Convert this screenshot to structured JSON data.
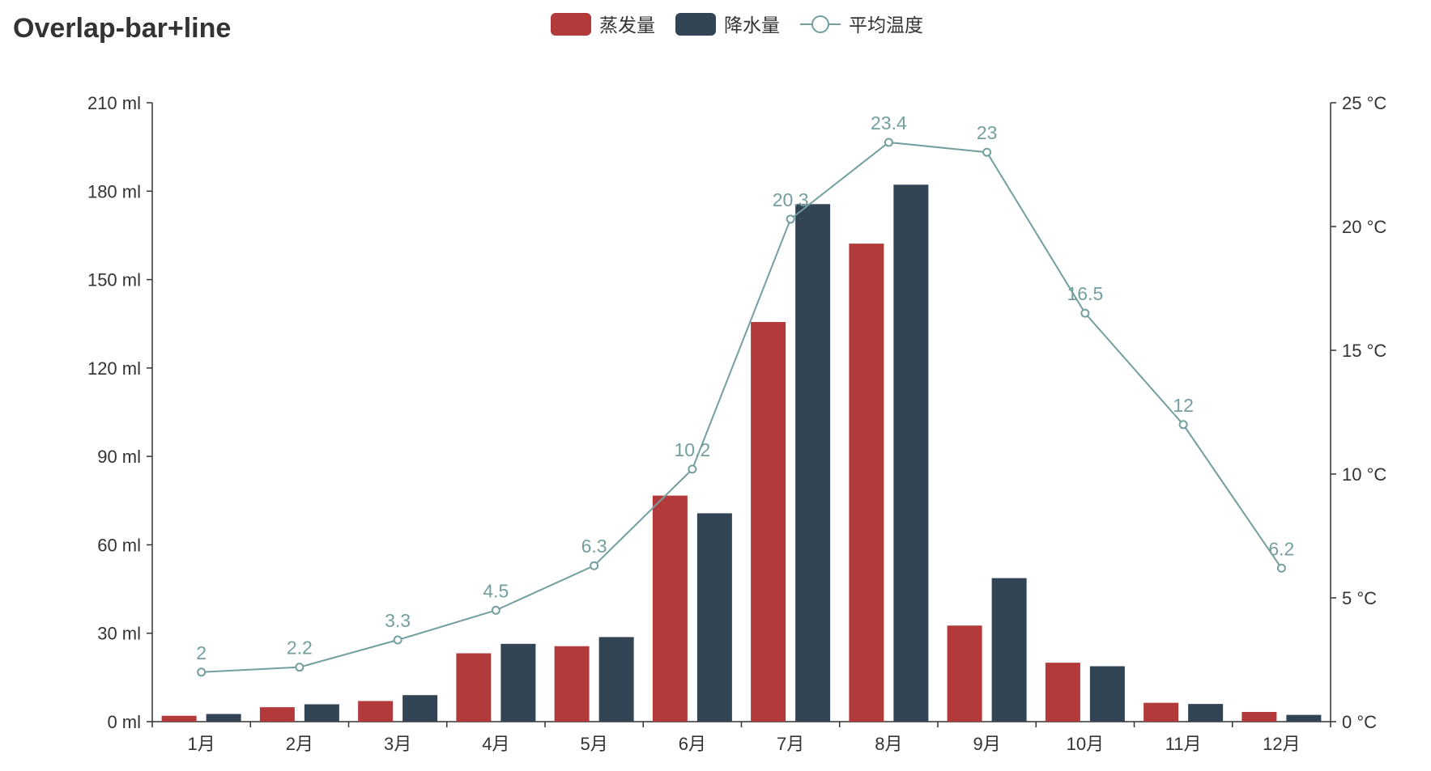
{
  "chart_data": {
    "type": "bar",
    "title": "Overlap-bar+line",
    "categories": [
      "1月",
      "2月",
      "3月",
      "4月",
      "5月",
      "6月",
      "7月",
      "8月",
      "9月",
      "10月",
      "11月",
      "12月"
    ],
    "series": [
      {
        "name": "蒸发量",
        "type": "bar",
        "axis": "left",
        "color": "#b33a3a",
        "values": [
          2.0,
          4.9,
          7.0,
          23.2,
          25.6,
          76.7,
          135.6,
          162.2,
          32.6,
          20.0,
          6.4,
          3.3
        ]
      },
      {
        "name": "降水量",
        "type": "bar",
        "axis": "left",
        "color": "#334455",
        "values": [
          2.6,
          5.9,
          9.0,
          26.4,
          28.7,
          70.7,
          175.6,
          182.2,
          48.7,
          18.8,
          6.0,
          2.3
        ]
      },
      {
        "name": "平均温度",
        "type": "line",
        "axis": "right",
        "color": "#749f9f",
        "values": [
          2.0,
          2.2,
          3.3,
          4.5,
          6.3,
          10.2,
          20.3,
          23.4,
          23.0,
          16.5,
          12.0,
          6.2
        ],
        "labels": [
          "2",
          "2.2",
          "3.3",
          "4.5",
          "6.3",
          "10.2",
          "20.3",
          "23.4",
          "23",
          "16.5",
          "12",
          "6.2"
        ]
      }
    ],
    "y_left": {
      "range": [
        0,
        210
      ],
      "ticks": [
        "0 ml",
        "30 ml",
        "60 ml",
        "90 ml",
        "120 ml",
        "150 ml",
        "180 ml",
        "210 ml"
      ]
    },
    "y_right": {
      "range": [
        0,
        25
      ],
      "ticks": [
        "0 °C",
        "5 °C",
        "10 °C",
        "15 °C",
        "20 °C",
        "25 °C"
      ]
    },
    "grid": false,
    "legend_position": "top-center"
  }
}
